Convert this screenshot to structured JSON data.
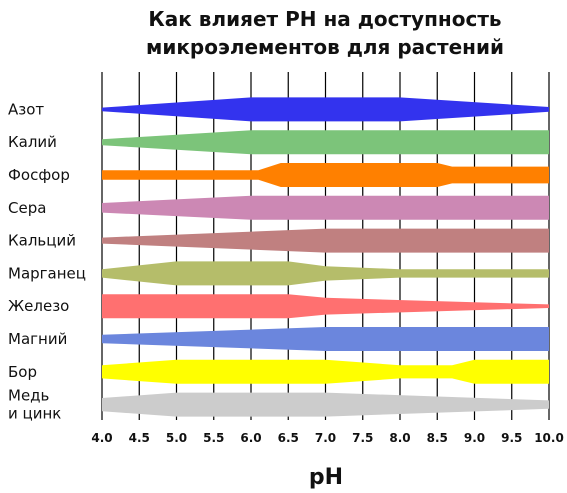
{
  "chart_data": {
    "type": "area",
    "title_lines": [
      "Как влияет PH на доступность",
      "микроэлементов для растений"
    ],
    "xlabel": "pH",
    "xlim": [
      4.0,
      10.0
    ],
    "x": [
      4.0,
      4.5,
      5.0,
      5.5,
      6.0,
      6.5,
      7.0,
      7.5,
      8.0,
      8.5,
      9.0,
      9.5,
      10.0
    ],
    "ticks": [
      "4.0",
      "4.5",
      "5.0",
      "5.5",
      "6.0",
      "6.5",
      "7.0",
      "7.5",
      "8.0",
      "8.5",
      "9.0",
      "9.5",
      "10.0"
    ],
    "grid": true,
    "series": [
      {
        "name": "Азот",
        "color": "#3333ee",
        "points": [
          [
            4.0,
            0.15
          ],
          [
            6.0,
            1.0
          ],
          [
            8.0,
            1.0
          ],
          [
            10.0,
            0.2
          ]
        ]
      },
      {
        "name": "Калий",
        "color": "#7cc47a",
        "points": [
          [
            4.0,
            0.25
          ],
          [
            6.0,
            1.0
          ],
          [
            10.0,
            1.0
          ]
        ]
      },
      {
        "name": "Фосфор",
        "color": "#ff8000",
        "points": [
          [
            4.0,
            0.4
          ],
          [
            6.1,
            0.4
          ],
          [
            6.4,
            1.0
          ],
          [
            8.5,
            1.0
          ],
          [
            8.7,
            0.7
          ],
          [
            10.0,
            0.7
          ]
        ]
      },
      {
        "name": "Сера",
        "color": "#cc88b4",
        "points": [
          [
            4.0,
            0.4
          ],
          [
            6.0,
            1.0
          ],
          [
            10.0,
            1.0
          ]
        ]
      },
      {
        "name": "Кальций",
        "color": "#c08080",
        "points": [
          [
            4.0,
            0.25
          ],
          [
            7.0,
            1.0
          ],
          [
            10.0,
            1.0
          ]
        ]
      },
      {
        "name": "Марганец",
        "color": "#b5bd6a",
        "points": [
          [
            4.0,
            0.35
          ],
          [
            5.0,
            1.0
          ],
          [
            6.5,
            1.0
          ],
          [
            7.0,
            0.6
          ],
          [
            8.0,
            0.35
          ],
          [
            10.0,
            0.35
          ]
        ]
      },
      {
        "name": "Железо",
        "color": "#ff7070",
        "points": [
          [
            4.0,
            1.0
          ],
          [
            6.5,
            1.0
          ],
          [
            7.0,
            0.7
          ],
          [
            10.0,
            0.15
          ]
        ]
      },
      {
        "name": "Магний",
        "color": "#6b86dd",
        "points": [
          [
            4.0,
            0.35
          ],
          [
            7.0,
            1.0
          ],
          [
            10.0,
            1.0
          ]
        ]
      },
      {
        "name": "Бор",
        "color": "#ffff00",
        "points": [
          [
            4.0,
            0.55
          ],
          [
            5.0,
            1.0
          ],
          [
            7.0,
            1.0
          ],
          [
            8.0,
            0.55
          ],
          [
            8.7,
            0.55
          ],
          [
            9.0,
            1.0
          ],
          [
            10.0,
            1.0
          ]
        ]
      },
      {
        "name": "Медь\nи цинк",
        "color": "#cccccc",
        "points": [
          [
            4.0,
            0.55
          ],
          [
            5.0,
            1.0
          ],
          [
            7.0,
            1.0
          ],
          [
            10.0,
            0.35
          ]
        ]
      }
    ]
  }
}
